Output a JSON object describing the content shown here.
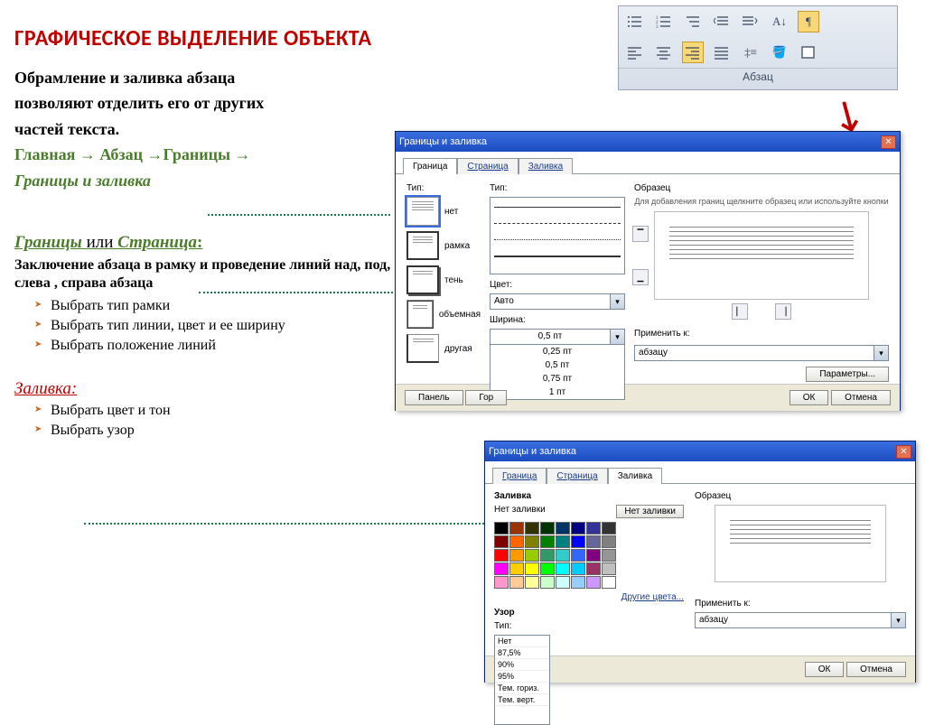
{
  "heading": "ГРАФИЧЕСКОЕ ВЫДЕЛЕНИЕ ОБЪЕКТА",
  "intro_l1": "Обрамление и заливка абзаца",
  "intro_l2": "позволяют отделить его от других",
  "intro_l3": "частей текста.",
  "path_l1": "Главная → Абзац →Границы →",
  "path_l2": "Границы и заливка",
  "section2": {
    "title_part1": "Границы",
    "title_or": " или ",
    "title_part2": "Страница",
    "title_colon": ":",
    "desc": "Заключение абзаца в рамку и проведение линий над, под, слева , справа абзаца",
    "bullets": [
      "Выбрать тип рамки",
      "Выбрать тип линии, цвет и ее ширину",
      "Выбрать положение линий"
    ]
  },
  "section3": {
    "title": "Заливка:",
    "bullets": [
      "Выбрать цвет и тон",
      "Выбрать узор"
    ]
  },
  "ribbon": {
    "group_label": "Абзац"
  },
  "colors": {
    "heading": "#c00000",
    "green": "#4a7c2a",
    "connector": "#1a7c4a",
    "ribbon_bg_top": "#e9eef4",
    "ribbon_bg_bot": "#d6dee9",
    "ribbon_sel": "#f8d778",
    "title_grad_top": "#3a6ee0",
    "title_grad_bot": "#1b4cc0",
    "dlg_bg": "#ece9d8"
  },
  "dlg1": {
    "title": "Границы и заливка",
    "tabs": [
      "Граница",
      "Страница",
      "Заливка"
    ],
    "active_tab": 0,
    "type_label": "Тип:",
    "type_options": [
      "нет",
      "рамка",
      "тень",
      "объемная",
      "другая"
    ],
    "line_label": "Тип:",
    "color_label": "Цвет:",
    "color_value": "Авто",
    "width_label": "Ширина:",
    "width_value": "0,5 пт",
    "width_options": [
      "0,25 пт",
      "0,5 пт",
      "0,75 пт",
      "1 пт"
    ],
    "preview_label": "Образец",
    "preview_note": "Для добавления границ щелкните образец или используйте кнопки",
    "apply_label": "Применить к:",
    "apply_value": "абзацу",
    "params_btn": "Параметры...",
    "panel_btn": "Панель",
    "hline_btn": "Гор",
    "ok_btn": "ОК",
    "cancel_btn": "Отмена"
  },
  "dlg2": {
    "title": "Границы и заливка",
    "tabs": [
      "Граница",
      "Страница",
      "Заливка"
    ],
    "active_tab": 2,
    "fill_label": "Заливка",
    "nofill_label": "Нет заливки",
    "nofill_btn": "Нет заливки",
    "more_colors": "Другие цвета...",
    "pattern_label": "Узор",
    "pattern_type_label": "Тип:",
    "pattern_options": [
      "Нет",
      "87,5%",
      "90%",
      "95%",
      "Тем. гориз.",
      "Тем. верт."
    ],
    "palette": [
      [
        "#000000",
        "#993300",
        "#333300",
        "#003300",
        "#003366",
        "#000080",
        "#333399",
        "#333333"
      ],
      [
        "#800000",
        "#ff6600",
        "#808000",
        "#008000",
        "#008080",
        "#0000ff",
        "#666699",
        "#808080"
      ],
      [
        "#ff0000",
        "#ff9900",
        "#99cc00",
        "#339966",
        "#33cccc",
        "#3366ff",
        "#800080",
        "#969696"
      ],
      [
        "#ff00ff",
        "#ffcc00",
        "#ffff00",
        "#00ff00",
        "#00ffff",
        "#00ccff",
        "#993366",
        "#c0c0c0"
      ],
      [
        "#ff99cc",
        "#ffcc99",
        "#ffff99",
        "#ccffcc",
        "#ccffff",
        "#99ccff",
        "#cc99ff",
        "#ffffff"
      ]
    ],
    "preview_label": "Образец",
    "apply_label": "Применить к:",
    "apply_value": "абзацу",
    "ok_btn": "ОК",
    "cancel_btn": "Отмена"
  }
}
